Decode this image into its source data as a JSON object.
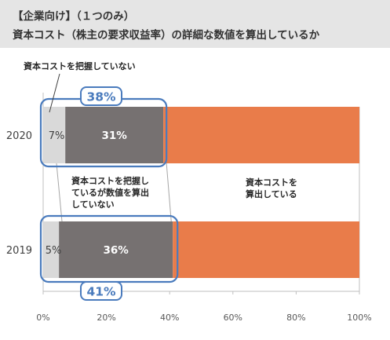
{
  "header": {
    "line1": "【企業向け】（１つのみ）",
    "line2": "資本コスト（株主の要求収益率）の詳細な数値を算出しているか"
  },
  "chart_data": {
    "type": "bar",
    "orientation": "horizontal",
    "stacked": true,
    "xlim": [
      0,
      100
    ],
    "x_ticks": [
      "0%",
      "20%",
      "40%",
      "60%",
      "80%",
      "100%"
    ],
    "categories": [
      "2020",
      "2019"
    ],
    "series": [
      {
        "name": "資本コストを把握していない",
        "values": [
          7,
          5
        ],
        "labels": [
          "7%",
          "5%"
        ],
        "color": "#d9d9d9"
      },
      {
        "name": "資本コストを把握しているが数値を算出していない",
        "values": [
          31,
          36
        ],
        "labels": [
          "31%",
          "36%"
        ],
        "color": "#767171"
      },
      {
        "name": "資本コストを算出している",
        "values": [
          62,
          59
        ],
        "labels": [
          "",
          ""
        ],
        "color": "#e97c4a"
      }
    ],
    "group_totals": [
      "38%",
      "41%"
    ],
    "group_total_color": "#4a7bbd",
    "annotations": {
      "not_grasped": "資本コストを把握していない",
      "grasped_not_calculated": [
        "資本コストを把握し",
        "ているが数値を算出",
        "していない"
      ],
      "calculated": [
        "資本コストを",
        "算出している"
      ]
    }
  }
}
